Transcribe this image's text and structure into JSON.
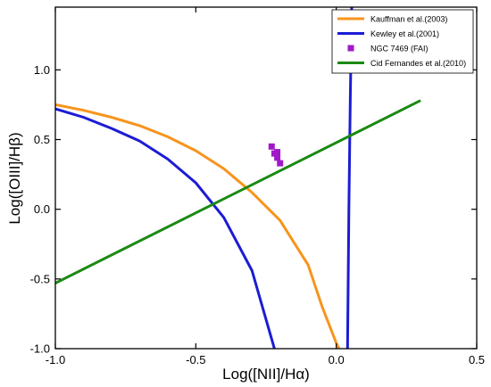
{
  "chart_data": {
    "type": "line",
    "xlabel": "Log([NII]/Hα)",
    "ylabel": "Log([OIII]/Hβ)",
    "xlim": [
      -1.0,
      0.5
    ],
    "ylim": [
      -1.0,
      1.45
    ],
    "x_ticks": [
      "-1.0",
      "-0.5",
      "0.0",
      "0.5"
    ],
    "y_ticks": [
      "-1.0",
      "-0.5",
      "0.0",
      "0.5",
      "1.0"
    ],
    "x_tick_values": [
      -1.0,
      -0.5,
      0.0,
      0.5
    ],
    "y_tick_values": [
      -1.0,
      -0.5,
      0.0,
      0.5,
      1.0
    ],
    "grid": false,
    "legend_position": "top-right",
    "series": [
      {
        "name": "Kauffman et al.(2003)",
        "kind": "line",
        "color": "#f7941d",
        "points": [
          [
            -1.0,
            0.75
          ],
          [
            -0.9,
            0.71
          ],
          [
            -0.8,
            0.66
          ],
          [
            -0.7,
            0.6
          ],
          [
            -0.6,
            0.52
          ],
          [
            -0.5,
            0.42
          ],
          [
            -0.4,
            0.29
          ],
          [
            -0.3,
            0.12
          ],
          [
            -0.2,
            -0.08
          ],
          [
            -0.1,
            -0.4
          ],
          [
            -0.05,
            -0.7
          ],
          [
            0.0,
            -0.96
          ],
          [
            0.01,
            -1.0
          ]
        ]
      },
      {
        "name": "Kewley et al.(2001)",
        "kind": "line",
        "color": "#1c1cd4",
        "points": [
          [
            -1.0,
            0.72
          ],
          [
            -0.9,
            0.66
          ],
          [
            -0.8,
            0.58
          ],
          [
            -0.7,
            0.49
          ],
          [
            -0.6,
            0.36
          ],
          [
            -0.5,
            0.19
          ],
          [
            -0.4,
            -0.06
          ],
          [
            -0.3,
            -0.44
          ],
          [
            -0.22,
            -1.0
          ]
        ]
      },
      {
        "name": "Kewley et al.(2001) upper",
        "kind": "line",
        "color": "#1c1cd4",
        "points": [
          [
            0.04,
            -1.0
          ],
          [
            0.045,
            0.0
          ],
          [
            0.05,
            0.8
          ],
          [
            0.055,
            1.45
          ]
        ]
      },
      {
        "name": "NGC 7469 (FAI)",
        "kind": "scatter",
        "color": "#a019c8",
        "points": [
          [
            -0.23,
            0.45
          ],
          [
            -0.22,
            0.4
          ],
          [
            -0.21,
            0.37
          ],
          [
            -0.2,
            0.33
          ],
          [
            -0.21,
            0.41
          ]
        ]
      },
      {
        "name": "Cid Fernandes et al.(2010)",
        "kind": "line",
        "color": "#1a8a12",
        "points": [
          [
            -1.0,
            -0.53
          ],
          [
            0.3,
            0.78
          ]
        ]
      }
    ],
    "legend": [
      {
        "label": "Kauffman et al.(2003)",
        "color": "#f7941d",
        "kind": "line"
      },
      {
        "label": "Kewley et al.(2001)",
        "color": "#1c1cd4",
        "kind": "line"
      },
      {
        "label": "NGC 7469 (FAI)",
        "color": "#a019c8",
        "kind": "scatter"
      },
      {
        "label": "Cid Fernandes et al.(2010)",
        "color": "#1a8a12",
        "kind": "line"
      }
    ]
  }
}
